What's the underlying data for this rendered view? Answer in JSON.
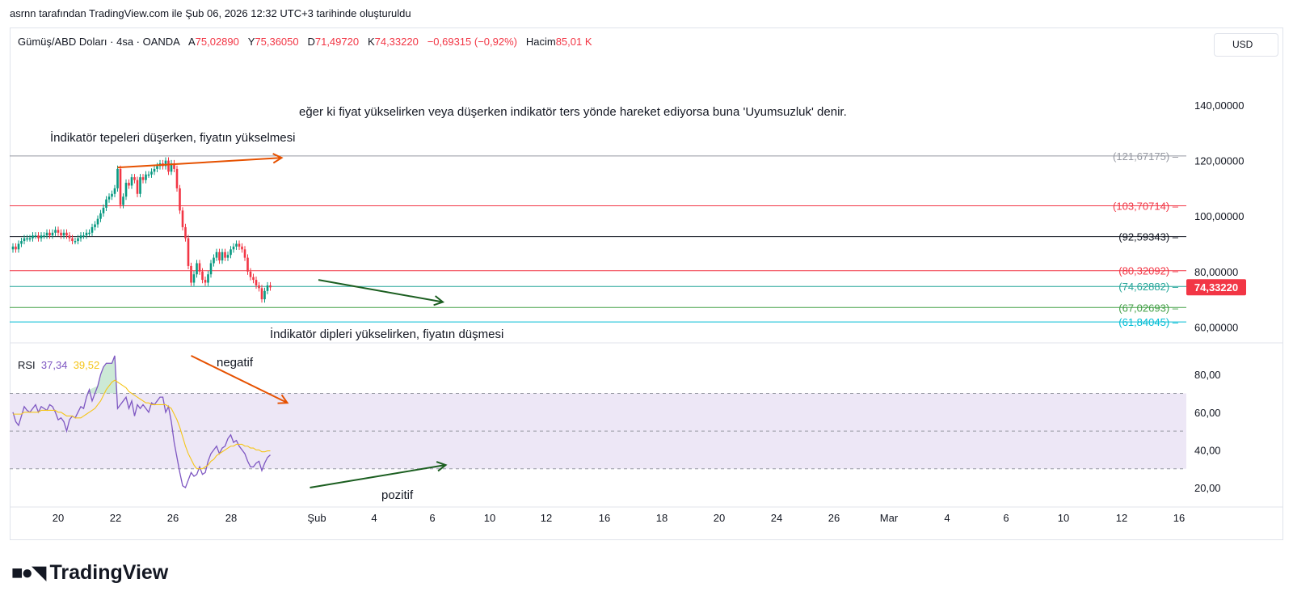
{
  "header": {
    "caption": "asrnn tarafından TradingView.com ile Şub 06, 2026 12:32 UTC+3 tarihinde oluşturuldu"
  },
  "legend": {
    "symbol": "Gümüş/ABD Doları · 4sa · OANDA",
    "o_label": "A",
    "o": "75,02890",
    "h_label": "Y",
    "h": "75,36050",
    "l_label": "D",
    "l": "71,49720",
    "c_label": "K",
    "c": "74,33220",
    "change": "−0,69315 (−0,92%)",
    "vol_label": "Hacim",
    "vol": "85,01 K"
  },
  "currency_button": "USD",
  "rsi_legend": {
    "name": "RSI",
    "value": "37,34",
    "ma": "39,52"
  },
  "annotations": {
    "main_note": "eğer ki fiyat yükselirken veya düşerken indikatör ters yönde hareket ediyorsa buna 'Uyumsuzluk' denir.",
    "top_note": "İndikatör tepeleri düşerken, fiyatın yükselmesi",
    "bottom_note": "İndikatör dipleri yükselirken, fiyatın düşmesi",
    "negative": "negatif",
    "positive": "pozitif"
  },
  "brand": "TradingView",
  "colors": {
    "bull": "#089981",
    "bear": "#f23645",
    "rsi": "#7e57c2",
    "rsi_ma": "#f5c518",
    "arrow_orange": "#e65100",
    "arrow_green": "#1b5e20",
    "band": "#ede7f6"
  },
  "chart_data": [
    {
      "type": "candlestick",
      "title": "Gümüş/ABD Doları · 4sa · OANDA",
      "ylim": [
        55,
        150
      ],
      "y_ticks": [
        "140,00000",
        "120,00000",
        "100,00000",
        "80,00000",
        "60,00000"
      ],
      "y_tick_values": [
        140,
        120,
        100,
        80,
        60
      ],
      "last_price": {
        "value": 74.3322,
        "label": "74,33220"
      },
      "horizontal_levels": [
        {
          "value": 121.67175,
          "label": "(121,67175)",
          "color": "#9598a1"
        },
        {
          "value": 103.70714,
          "label": "(103,70714)",
          "color": "#f23645"
        },
        {
          "value": 92.59343,
          "label": "(92,59343)",
          "color": "#131722"
        },
        {
          "value": 80.32092,
          "label": "(80,32092)",
          "color": "#f23645"
        },
        {
          "value": 74.62882,
          "label": "(74,62882)",
          "color": "#26a69a"
        },
        {
          "value": 67.02693,
          "label": "(67,02693)",
          "color": "#43a047"
        },
        {
          "value": 61.84045,
          "label": "(61,84045)",
          "color": "#00bcd4"
        }
      ],
      "x_ticks": [
        "20",
        "22",
        "26",
        "28",
        "Şub",
        "4",
        "6",
        "10",
        "12",
        "16",
        "18",
        "20",
        "24",
        "26",
        "Mar",
        "4",
        "6",
        "10",
        "12",
        "16"
      ],
      "close": [
        89,
        88,
        90,
        91,
        92,
        92,
        92,
        93,
        93,
        92,
        93,
        93,
        94,
        93,
        94,
        95,
        94,
        93,
        94,
        93,
        92,
        91,
        91,
        92,
        93,
        93,
        94,
        94,
        96,
        97,
        99,
        101,
        103,
        106,
        107,
        108,
        110,
        117,
        104,
        107,
        112,
        111,
        114,
        113,
        108,
        114,
        113,
        115,
        115,
        116,
        117,
        118,
        119,
        118,
        120,
        116,
        119,
        117,
        110,
        102,
        96,
        92,
        82,
        76,
        79,
        83,
        80,
        77,
        76,
        79,
        83,
        85,
        87,
        84,
        87,
        85,
        86,
        88,
        89,
        90,
        89,
        88,
        85,
        80,
        78,
        77,
        75,
        74,
        70,
        73,
        75,
        74.3
      ]
    },
    {
      "type": "line",
      "title": "RSI",
      "ylim": [
        15,
        95
      ],
      "y_ticks": [
        "80,00",
        "60,00",
        "40,00",
        "20,00"
      ],
      "y_tick_values": [
        80,
        60,
        40,
        20
      ],
      "bands": {
        "upper": 70,
        "middle": 50,
        "lower": 30
      },
      "series": [
        {
          "name": "RSI",
          "values": [
            60,
            55,
            53,
            58,
            63,
            61,
            60,
            62,
            64,
            60,
            63,
            62,
            61,
            64,
            63,
            60,
            56,
            57,
            55,
            50,
            56,
            58,
            57,
            60,
            63,
            62,
            68,
            72,
            66,
            70,
            74,
            80,
            84,
            86,
            86,
            86,
            90,
            62,
            64,
            66,
            68,
            62,
            66,
            58,
            64,
            62,
            64,
            62,
            60,
            65,
            64,
            66,
            68,
            68,
            60,
            63,
            55,
            44,
            36,
            28,
            21,
            20,
            24,
            28,
            26,
            27,
            31,
            27,
            28,
            34,
            38,
            40,
            42,
            38,
            41,
            42,
            46,
            48,
            44,
            45,
            42,
            40,
            38,
            34,
            31,
            31,
            33,
            34,
            29,
            33,
            36,
            37.34
          ]
        },
        {
          "name": "MA",
          "values": [
            59,
            59,
            59,
            59,
            60,
            60,
            60,
            60,
            60,
            60,
            61,
            61,
            61,
            61,
            61,
            61,
            60,
            60,
            59,
            58,
            58,
            58,
            57,
            57,
            57,
            58,
            59,
            60,
            61,
            62,
            64,
            66,
            69,
            72,
            74,
            76,
            77,
            76,
            75,
            74,
            73,
            71,
            70,
            69,
            68,
            67,
            66,
            65,
            65,
            64,
            64,
            64,
            64,
            64,
            64,
            63,
            62,
            59,
            56,
            52,
            47,
            42,
            38,
            35,
            32,
            30,
            30,
            30,
            31,
            32,
            34,
            35,
            37,
            38,
            39,
            40,
            41,
            42,
            42,
            43,
            43,
            43,
            42,
            42,
            41,
            41,
            40,
            40,
            39,
            39,
            39.5,
            39.52
          ]
        }
      ]
    }
  ]
}
